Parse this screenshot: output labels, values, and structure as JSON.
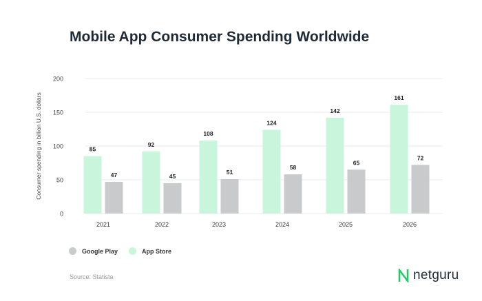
{
  "title": "Mobile App Consumer Spending Worldwide",
  "chart_data": {
    "type": "bar",
    "categories": [
      "2021",
      "2022",
      "2023",
      "2024",
      "2025",
      "2026"
    ],
    "series": [
      {
        "name": "App Store",
        "values": [
          85,
          92,
          108,
          124,
          142,
          161
        ],
        "color": "#c9f5dd"
      },
      {
        "name": "Google Play",
        "values": [
          47,
          45,
          51,
          58,
          65,
          72
        ],
        "color": "#c8cacc"
      }
    ],
    "ylabel": "Consumer spending in billion U.S. dollars",
    "ylim": [
      0,
      200
    ],
    "yticks": [
      "0",
      "50",
      "100",
      "150",
      "200"
    ],
    "grid": true,
    "legend_placement": "bottom-left"
  },
  "legend": [
    {
      "label": "Google Play",
      "color": "#c8cacc"
    },
    {
      "label": "App Store",
      "color": "#c9f5dd"
    }
  ],
  "source": "Source: Statista",
  "logo": {
    "text": "netguru",
    "color": "#1ecd5e"
  }
}
